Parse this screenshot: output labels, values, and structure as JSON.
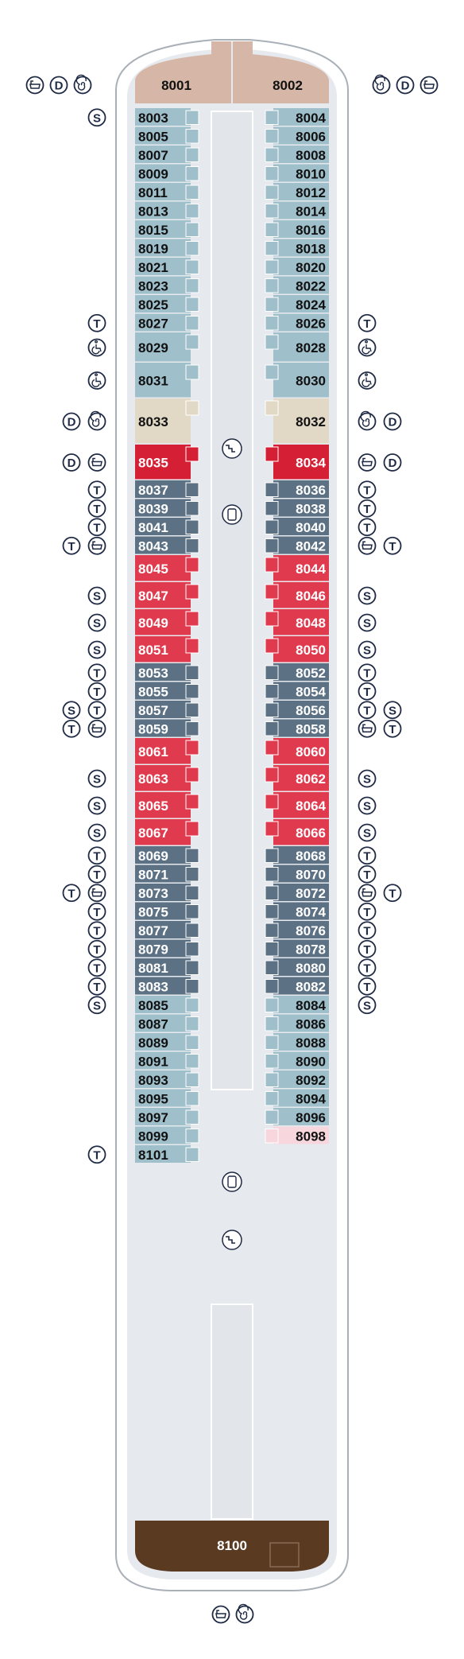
{
  "colors": {
    "hull_outline": "#aab0b8",
    "deck_floor": "#e6eaee",
    "corridor": "#e6eaee",
    "light_blue": "#9fbfcb",
    "slate": "#5c7184",
    "red": "#e03a4e",
    "crimson": "#d51f35",
    "sand": "#e1d9c6",
    "blush": "#f7d6dd",
    "owner_top": "#d6b7a7",
    "owner_bottom": "#5b3a22",
    "label_dark": "#111111",
    "label_light": "#ffffff",
    "symbol": "#1f2a44"
  },
  "symbol_legend": {
    "S": "S",
    "T": "T",
    "D": "D",
    "bathtub": "bathtub-icon",
    "whirlpool": "whirlpool-icon",
    "accessible": "wheelchair-icon",
    "stairs": "stairs-icon",
    "elevator": "elevator-icon"
  },
  "suites": {
    "forward_left": "8001",
    "forward_right": "8002",
    "aft": "8100"
  },
  "port_cabins": [
    {
      "n": "8003",
      "c": "light_blue",
      "tag": [
        "S"
      ]
    },
    {
      "n": "8005",
      "c": "light_blue",
      "tag": []
    },
    {
      "n": "8007",
      "c": "light_blue",
      "tag": []
    },
    {
      "n": "8009",
      "c": "light_blue",
      "tag": []
    },
    {
      "n": "8011",
      "c": "light_blue",
      "tag": []
    },
    {
      "n": "8013",
      "c": "light_blue",
      "tag": []
    },
    {
      "n": "8015",
      "c": "light_blue",
      "tag": []
    },
    {
      "n": "8019",
      "c": "light_blue",
      "tag": []
    },
    {
      "n": "8021",
      "c": "light_blue",
      "tag": []
    },
    {
      "n": "8023",
      "c": "light_blue",
      "tag": []
    },
    {
      "n": "8025",
      "c": "light_blue",
      "tag": []
    },
    {
      "n": "8027",
      "c": "light_blue",
      "tag": [
        "T"
      ]
    },
    {
      "n": "8029",
      "c": "light_blue",
      "tag": [
        "accessible"
      ]
    },
    {
      "n": "8031",
      "c": "light_blue",
      "tag": [
        "accessible"
      ]
    },
    {
      "n": "8033",
      "c": "sand",
      "tag": [
        "D",
        "whirlpool"
      ]
    },
    {
      "n": "8035",
      "c": "crimson",
      "tag": [
        "D",
        "bathtub"
      ]
    },
    {
      "n": "8037",
      "c": "slate",
      "tag": [
        "T"
      ]
    },
    {
      "n": "8039",
      "c": "slate",
      "tag": [
        "T"
      ]
    },
    {
      "n": "8041",
      "c": "slate",
      "tag": [
        "T"
      ]
    },
    {
      "n": "8043",
      "c": "slate",
      "tag": [
        "T",
        "bathtub"
      ]
    },
    {
      "n": "8045",
      "c": "red",
      "tag": []
    },
    {
      "n": "8047",
      "c": "red",
      "tag": [
        "S"
      ]
    },
    {
      "n": "8049",
      "c": "red",
      "tag": [
        "S"
      ]
    },
    {
      "n": "8051",
      "c": "red",
      "tag": [
        "S"
      ]
    },
    {
      "n": "8053",
      "c": "slate",
      "tag": [
        "T"
      ]
    },
    {
      "n": "8055",
      "c": "slate",
      "tag": [
        "T"
      ]
    },
    {
      "n": "8057",
      "c": "slate",
      "tag": [
        "S",
        "T"
      ]
    },
    {
      "n": "8059",
      "c": "slate",
      "tag": [
        "T",
        "bathtub"
      ]
    },
    {
      "n": "8061",
      "c": "red",
      "tag": []
    },
    {
      "n": "8063",
      "c": "red",
      "tag": [
        "S"
      ]
    },
    {
      "n": "8065",
      "c": "red",
      "tag": [
        "S"
      ]
    },
    {
      "n": "8067",
      "c": "red",
      "tag": [
        "S"
      ]
    },
    {
      "n": "8069",
      "c": "slate",
      "tag": [
        "T"
      ]
    },
    {
      "n": "8071",
      "c": "slate",
      "tag": [
        "T"
      ]
    },
    {
      "n": "8073",
      "c": "slate",
      "tag": [
        "T",
        "bathtub"
      ]
    },
    {
      "n": "8075",
      "c": "slate",
      "tag": [
        "T"
      ]
    },
    {
      "n": "8077",
      "c": "slate",
      "tag": [
        "T"
      ]
    },
    {
      "n": "8079",
      "c": "slate",
      "tag": [
        "T"
      ]
    },
    {
      "n": "8081",
      "c": "slate",
      "tag": [
        "T"
      ]
    },
    {
      "n": "8083",
      "c": "slate",
      "tag": [
        "T"
      ]
    },
    {
      "n": "8085",
      "c": "light_blue",
      "tag": [
        "S"
      ]
    },
    {
      "n": "8087",
      "c": "light_blue",
      "tag": []
    },
    {
      "n": "8089",
      "c": "light_blue",
      "tag": []
    },
    {
      "n": "8091",
      "c": "light_blue",
      "tag": []
    },
    {
      "n": "8093",
      "c": "light_blue",
      "tag": []
    },
    {
      "n": "8095",
      "c": "light_blue",
      "tag": []
    },
    {
      "n": "8097",
      "c": "light_blue",
      "tag": []
    },
    {
      "n": "8099",
      "c": "light_blue",
      "tag": []
    },
    {
      "n": "8101",
      "c": "light_blue",
      "tag": [
        "T"
      ]
    }
  ],
  "starboard_cabins": [
    {
      "n": "8004",
      "c": "light_blue",
      "tag": []
    },
    {
      "n": "8006",
      "c": "light_blue",
      "tag": []
    },
    {
      "n": "8008",
      "c": "light_blue",
      "tag": []
    },
    {
      "n": "8010",
      "c": "light_blue",
      "tag": []
    },
    {
      "n": "8012",
      "c": "light_blue",
      "tag": []
    },
    {
      "n": "8014",
      "c": "light_blue",
      "tag": []
    },
    {
      "n": "8016",
      "c": "light_blue",
      "tag": []
    },
    {
      "n": "8018",
      "c": "light_blue",
      "tag": []
    },
    {
      "n": "8020",
      "c": "light_blue",
      "tag": []
    },
    {
      "n": "8022",
      "c": "light_blue",
      "tag": []
    },
    {
      "n": "8024",
      "c": "light_blue",
      "tag": []
    },
    {
      "n": "8026",
      "c": "light_blue",
      "tag": [
        "T"
      ]
    },
    {
      "n": "8028",
      "c": "light_blue",
      "tag": [
        "accessible"
      ]
    },
    {
      "n": "8030",
      "c": "light_blue",
      "tag": [
        "accessible"
      ]
    },
    {
      "n": "8032",
      "c": "sand",
      "tag": [
        "whirlpool",
        "D"
      ]
    },
    {
      "n": "8034",
      "c": "crimson",
      "tag": [
        "bathtub",
        "D"
      ]
    },
    {
      "n": "8036",
      "c": "slate",
      "tag": [
        "T"
      ]
    },
    {
      "n": "8038",
      "c": "slate",
      "tag": [
        "T"
      ]
    },
    {
      "n": "8040",
      "c": "slate",
      "tag": [
        "T"
      ]
    },
    {
      "n": "8042",
      "c": "slate",
      "tag": [
        "bathtub",
        "T"
      ]
    },
    {
      "n": "8044",
      "c": "red",
      "tag": []
    },
    {
      "n": "8046",
      "c": "red",
      "tag": [
        "S"
      ]
    },
    {
      "n": "8048",
      "c": "red",
      "tag": [
        "S"
      ]
    },
    {
      "n": "8050",
      "c": "red",
      "tag": [
        "S"
      ]
    },
    {
      "n": "8052",
      "c": "slate",
      "tag": [
        "T"
      ]
    },
    {
      "n": "8054",
      "c": "slate",
      "tag": [
        "T"
      ]
    },
    {
      "n": "8056",
      "c": "slate",
      "tag": [
        "T",
        "S"
      ]
    },
    {
      "n": "8058",
      "c": "slate",
      "tag": [
        "bathtub",
        "T"
      ]
    },
    {
      "n": "8060",
      "c": "red",
      "tag": []
    },
    {
      "n": "8062",
      "c": "red",
      "tag": [
        "S"
      ]
    },
    {
      "n": "8064",
      "c": "red",
      "tag": [
        "S"
      ]
    },
    {
      "n": "8066",
      "c": "red",
      "tag": [
        "S"
      ]
    },
    {
      "n": "8068",
      "c": "slate",
      "tag": [
        "T"
      ]
    },
    {
      "n": "8070",
      "c": "slate",
      "tag": [
        "T"
      ]
    },
    {
      "n": "8072",
      "c": "slate",
      "tag": [
        "bathtub",
        "T"
      ]
    },
    {
      "n": "8074",
      "c": "slate",
      "tag": [
        "T"
      ]
    },
    {
      "n": "8076",
      "c": "slate",
      "tag": [
        "T"
      ]
    },
    {
      "n": "8078",
      "c": "slate",
      "tag": [
        "T"
      ]
    },
    {
      "n": "8080",
      "c": "slate",
      "tag": [
        "T"
      ]
    },
    {
      "n": "8082",
      "c": "slate",
      "tag": [
        "T"
      ]
    },
    {
      "n": "8084",
      "c": "light_blue",
      "tag": [
        "S"
      ]
    },
    {
      "n": "8086",
      "c": "light_blue",
      "tag": []
    },
    {
      "n": "8088",
      "c": "light_blue",
      "tag": []
    },
    {
      "n": "8090",
      "c": "light_blue",
      "tag": []
    },
    {
      "n": "8092",
      "c": "light_blue",
      "tag": []
    },
    {
      "n": "8094",
      "c": "light_blue",
      "tag": []
    },
    {
      "n": "8096",
      "c": "light_blue",
      "tag": []
    },
    {
      "n": "8098",
      "c": "blush",
      "tag": []
    }
  ],
  "forward_symbols": {
    "left": [
      "bathtub",
      "D",
      "whirlpool"
    ],
    "right": [
      "whirlpool",
      "D",
      "bathtub"
    ]
  },
  "aft_symbols": [
    "bathtub",
    "whirlpool"
  ]
}
